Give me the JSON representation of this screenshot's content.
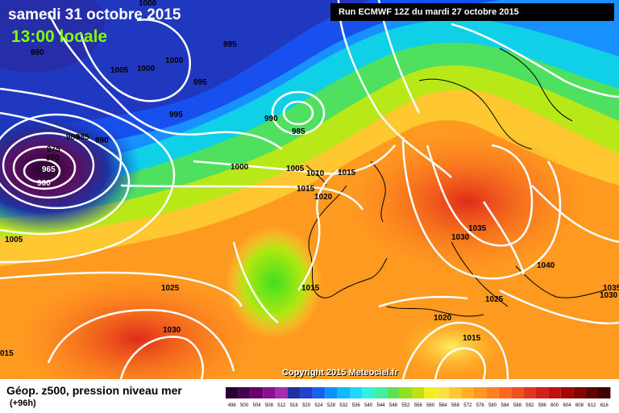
{
  "header": {
    "date": "samedi 31 octobre 2015",
    "time": "13:00 locale",
    "run": "Run ECMWF 12Z du mardi 27 octobre 2015"
  },
  "copyright": "Copyright 2015 Meteociel.fr",
  "footer": {
    "title": "Géop. z500, pression niveau mer",
    "subtitle": "(+96h)"
  },
  "colors": {
    "deep_low": "#3a0a4a",
    "blue": "#1e3cff",
    "cyan": "#00c8ff",
    "green": "#7fe000",
    "yellow": "#ffe040",
    "orange": "#ff9a20",
    "red": "#e83020"
  },
  "scale": {
    "labels": [
      "496",
      "500",
      "504",
      "508",
      "512",
      "516",
      "520",
      "524",
      "528",
      "532",
      "536",
      "540",
      "544",
      "548",
      "552",
      "556",
      "560",
      "564",
      "568",
      "572",
      "576",
      "580",
      "584",
      "588",
      "592",
      "596",
      "600",
      "604",
      "608",
      "612",
      "616"
    ],
    "colors": [
      "#2a0030",
      "#4a0050",
      "#6a0070",
      "#8a1090",
      "#a030b0",
      "#2030a0",
      "#2040d0",
      "#1860f0",
      "#1090ff",
      "#10b8ff",
      "#20d8ff",
      "#30f0e0",
      "#40f0a0",
      "#60e050",
      "#90e020",
      "#c0e010",
      "#f0f020",
      "#ffe040",
      "#ffc830",
      "#ffb020",
      "#ff9820",
      "#ff8020",
      "#ff6820",
      "#f05020",
      "#e03820",
      "#d02020",
      "#c01010",
      "#a00808",
      "#800404",
      "#600202",
      "#400000"
    ]
  },
  "isobars": [
    {
      "text": "1000",
      "color": "black"
    },
    {
      "text": "990",
      "color": "black"
    },
    {
      "text": "1005",
      "color": "black"
    },
    {
      "text": "1000",
      "color": "black"
    },
    {
      "text": "1000",
      "color": "black"
    },
    {
      "text": "995",
      "color": "black"
    },
    {
      "text": "995",
      "color": "black"
    },
    {
      "text": "995",
      "color": "black"
    },
    {
      "text": "990",
      "color": "black"
    },
    {
      "text": "985",
      "color": "black"
    },
    {
      "text": "980",
      "color": "black"
    },
    {
      "text": "985",
      "color": "black"
    },
    {
      "text": "990",
      "color": "black"
    },
    {
      "text": "975",
      "color": "black"
    },
    {
      "text": "970",
      "color": "black"
    },
    {
      "text": "965",
      "color": "black"
    },
    {
      "text": "960",
      "color": "black"
    },
    {
      "text": "1000",
      "color": "black"
    },
    {
      "text": "1005",
      "color": "black"
    },
    {
      "text": "1010",
      "color": "black"
    },
    {
      "text": "1015",
      "color": "black"
    },
    {
      "text": "1015",
      "color": "black"
    },
    {
      "text": "1020",
      "color": "black"
    },
    {
      "text": "1005",
      "color": "black"
    },
    {
      "text": "1035",
      "color": "black"
    },
    {
      "text": "1030",
      "color": "black"
    },
    {
      "text": "1040",
      "color": "black"
    },
    {
      "text": "1025",
      "color": "black"
    },
    {
      "text": "1015",
      "color": "black"
    },
    {
      "text": "1025",
      "color": "black"
    },
    {
      "text": "1020",
      "color": "black"
    },
    {
      "text": "1030",
      "color": "black"
    },
    {
      "text": "1015",
      "color": "black"
    },
    {
      "text": "1030",
      "color": "black"
    },
    {
      "text": "1035",
      "color": "black"
    },
    {
      "text": "015",
      "color": "black"
    }
  ]
}
